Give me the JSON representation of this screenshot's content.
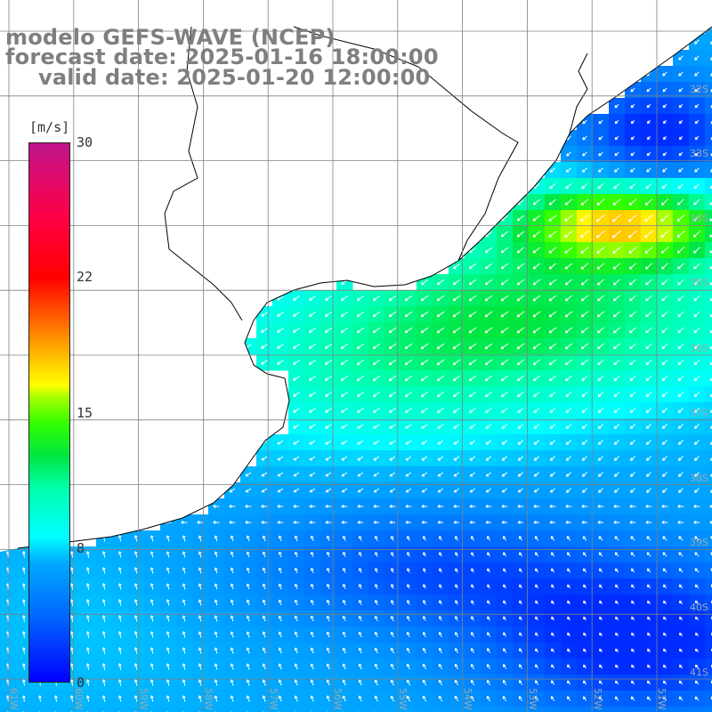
{
  "title": {
    "model": "modelo GEFS-WAVE (NCEP)",
    "forecast_date": "forecast date: 2025-01-16 18:00:00",
    "valid_date": "valid date: 2025-01-20 12:00:00"
  },
  "colorbar": {
    "units": "[m/s]",
    "ticks": [
      "30",
      "22",
      "15",
      "8",
      "0"
    ],
    "colors": [
      "#0000ff",
      "#00a8ff",
      "#00ffff",
      "#00e640",
      "#ffff00",
      "#ff0000",
      "#c0148c"
    ]
  },
  "axes": {
    "lat_labels": [
      "32S",
      "33S",
      "34S",
      "35S",
      "36S",
      "37S",
      "38S",
      "39S",
      "40S",
      "41S"
    ],
    "lon_labels": [
      "61W",
      "60W",
      "59W",
      "58W",
      "57W",
      "56W",
      "55W",
      "54W",
      "53W",
      "52W",
      "51W"
    ]
  },
  "map": {
    "variable": "wind speed and direction",
    "land_color": "#ffffff",
    "grid_color": "#808080",
    "coast_color": "#000000"
  }
}
